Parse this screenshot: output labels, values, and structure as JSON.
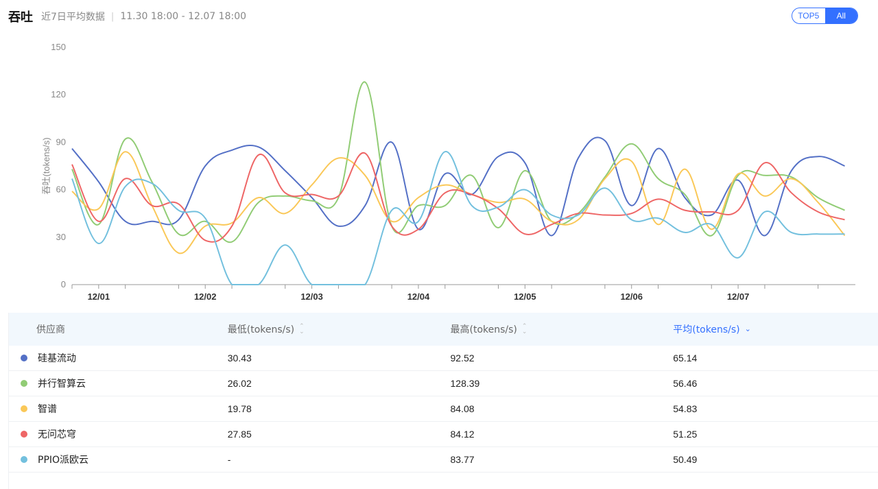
{
  "header": {
    "title": "吞吐",
    "subtitle": "近7日平均数据",
    "separator": "|",
    "date_range": "11.30 18:00 - 12.07 18:00"
  },
  "toggle": {
    "options": [
      "TOP5",
      "All"
    ],
    "selected": "All"
  },
  "colors": {
    "series": [
      "#5470c6",
      "#91cc75",
      "#fac858",
      "#ee6666",
      "#73c0de"
    ],
    "accent": "#3370ff"
  },
  "chart_data": {
    "type": "line",
    "ylabel": "吞吐(tokens/s)",
    "ylim": [
      0,
      150
    ],
    "yticks": [
      0,
      30,
      60,
      90,
      120,
      150
    ],
    "xlim": [
      0,
      7.35
    ],
    "x_tick_labels": [
      "12/01",
      "12/02",
      "12/03",
      "12/04",
      "12/05",
      "12/06",
      "12/07"
    ],
    "x_tick_positions": [
      0.25,
      1.25,
      2.25,
      3.25,
      4.25,
      5.25,
      6.25
    ],
    "grid": false,
    "smooth": true,
    "series": [
      {
        "name": "硅基流动",
        "x": [
          0,
          0.25,
          0.5,
          0.75,
          1,
          1.25,
          1.5,
          1.75,
          2,
          2.25,
          2.5,
          2.75,
          3,
          3.25,
          3.5,
          3.75,
          4,
          4.25,
          4.5,
          4.75,
          5,
          5.25,
          5.5,
          5.75,
          6,
          6.25,
          6.5,
          6.75,
          7,
          7.25
        ],
        "y": [
          86,
          65,
          40,
          40,
          41,
          75,
          85,
          87,
          72,
          55,
          37,
          50,
          90,
          35,
          70,
          57,
          81,
          77,
          31,
          80,
          91,
          50,
          86,
          55,
          44,
          66,
          31,
          72,
          81,
          75
        ]
      },
      {
        "name": "并行智算云",
        "x": [
          0,
          0.25,
          0.5,
          0.75,
          1,
          1.25,
          1.5,
          1.75,
          2,
          2.25,
          2.5,
          2.75,
          3,
          3.25,
          3.5,
          3.75,
          4,
          4.25,
          4.5,
          4.75,
          5,
          5.25,
          5.5,
          5.75,
          6,
          6.25,
          6.5,
          6.75,
          7,
          7.25
        ],
        "y": [
          73,
          38,
          92,
          65,
          32,
          40,
          27,
          52,
          56,
          53,
          55,
          128,
          37,
          50,
          50,
          69,
          36,
          72,
          40,
          45,
          68,
          89,
          67,
          57,
          31,
          69,
          69,
          68,
          55,
          47
        ]
      },
      {
        "name": "智谱",
        "x": [
          0,
          0.25,
          0.5,
          0.75,
          1,
          1.25,
          1.5,
          1.75,
          2,
          2.25,
          2.5,
          2.75,
          3,
          3.25,
          3.5,
          3.75,
          4,
          4.25,
          4.5,
          4.75,
          5,
          5.25,
          5.5,
          5.75,
          6,
          6.25,
          6.5,
          6.75,
          7,
          7.25
        ],
        "y": [
          59,
          48,
          84,
          50,
          20,
          37,
          39,
          55,
          45,
          63,
          80,
          69,
          40,
          55,
          63,
          57,
          52,
          54,
          40,
          41,
          67,
          78,
          38,
          73,
          35,
          70,
          56,
          67,
          52,
          31
        ]
      },
      {
        "name": "无问芯穹",
        "x": [
          0,
          0.25,
          0.5,
          0.75,
          1,
          1.25,
          1.5,
          1.75,
          2,
          2.25,
          2.5,
          2.75,
          3,
          3.25,
          3.5,
          3.75,
          4,
          4.25,
          4.5,
          4.75,
          5,
          5.25,
          5.5,
          5.75,
          6,
          6.25,
          6.5,
          6.75,
          7,
          7.25
        ],
        "y": [
          76,
          40,
          67,
          50,
          51,
          28,
          37,
          82,
          58,
          57,
          56,
          83,
          37,
          35,
          58,
          57,
          48,
          32,
          38,
          45,
          44,
          45,
          54,
          47,
          46,
          47,
          77,
          58,
          46,
          41
        ]
      },
      {
        "name": "PPIO派欧云",
        "x": [
          0,
          0.25,
          0.5,
          0.75,
          1,
          1.25,
          1.5,
          1.75,
          2,
          2.25,
          2.5,
          2.75,
          3,
          3.25,
          3.5,
          3.75,
          4,
          4.25,
          4.5,
          4.75,
          5,
          5.25,
          5.5,
          5.75,
          6,
          6.25,
          6.5,
          6.75,
          7,
          7.25
        ],
        "y": [
          67,
          26,
          62,
          64,
          47,
          42,
          0,
          0,
          25,
          0,
          0,
          0,
          47,
          40,
          84,
          50,
          49,
          60,
          44,
          44,
          61,
          41,
          42,
          33,
          38,
          17,
          46,
          33,
          32,
          32
        ]
      }
    ]
  },
  "table": {
    "headers": [
      "供应商",
      "最低(tokens/s)",
      "最高(tokens/s)",
      "平均(tokens/s)"
    ],
    "sort_up_icon": "sort-up-icon",
    "sort_down_icon": "sort-down-icon",
    "rows": [
      {
        "provider": "硅基流动",
        "min": "30.43",
        "max": "92.52",
        "avg": "65.14",
        "color": "#5470c6"
      },
      {
        "provider": "并行智算云",
        "min": "26.02",
        "max": "128.39",
        "avg": "56.46",
        "color": "#91cc75"
      },
      {
        "provider": "智谱",
        "min": "19.78",
        "max": "84.08",
        "avg": "54.83",
        "color": "#fac858"
      },
      {
        "provider": "无问芯穹",
        "min": "27.85",
        "max": "84.12",
        "avg": "51.25",
        "color": "#ee6666"
      },
      {
        "provider": "PPIO派欧云",
        "min": "-",
        "max": "83.77",
        "avg": "50.49",
        "color": "#73c0de"
      }
    ]
  }
}
